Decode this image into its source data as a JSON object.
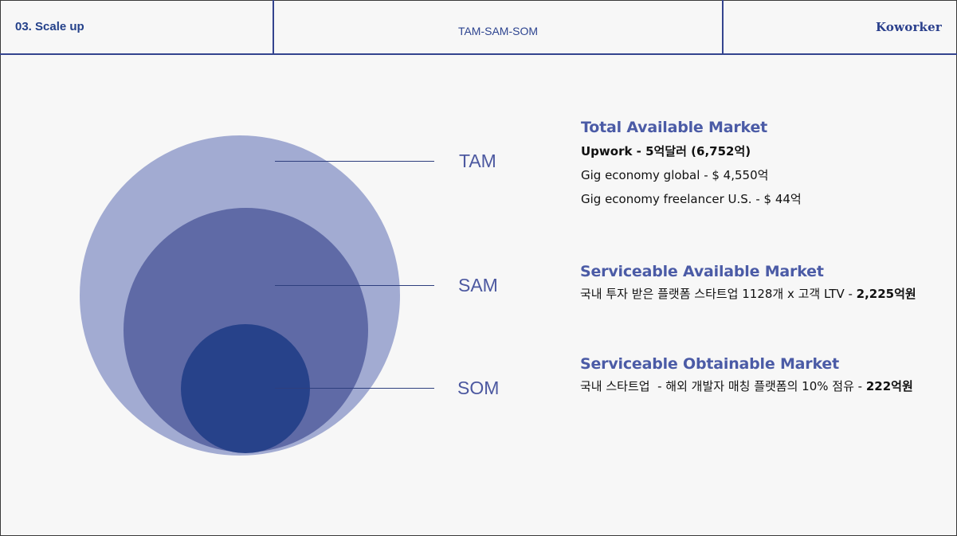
{
  "header": {
    "section": "03. Scale up",
    "title": "TAM-SAM-SOM",
    "brand": "Koworker"
  },
  "diagram": {
    "labels": {
      "tam": "TAM",
      "sam": "SAM",
      "som": "SOM"
    },
    "colors": {
      "tam": "#a2abd2",
      "sam": "#5f6aa6",
      "som": "#27428a"
    }
  },
  "tam": {
    "heading": "Total Available Market",
    "lines": [
      "Upwork - 5억달러 (6,752억)",
      "Gig economy global - $ 4,550억",
      "Gig economy freelancer U.S. - $ 44억"
    ]
  },
  "sam": {
    "heading": "Serviceable Available Market",
    "text": "국내 투자 받은 플랫폼 스타트업 1128개 x 고객 LTV - ",
    "value": "2,225억원"
  },
  "som": {
    "heading": "Serviceable Obtainable Market",
    "text": "국내 스타트업  - 해외 개발자 매칭 플랫폼의 10% 점유 - ",
    "value": "222억원"
  }
}
